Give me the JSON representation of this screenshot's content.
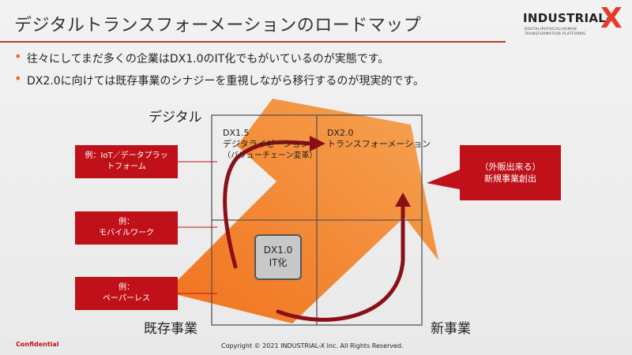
{
  "title": "デジタルトランスフォーメーションのロードマップ",
  "logo": {
    "name": "INDUSTRIAL-",
    "x": "X",
    "line1": "DIGITAL/PHYSICAL/HUMAN",
    "line2": "TRANSFORMATION PLATFORMS"
  },
  "bullets": [
    "往々にしてまだ多くの企業はDX1.0のIT化でもがいているのが実態です。",
    "DX2.0に向けては既存事業のシナジーを重視しながら移行するのが現実的です。"
  ],
  "axes": {
    "top_left": "デジタル",
    "bottom_left": "既存事業",
    "bottom_right": "新事業"
  },
  "quadrants": {
    "dx15_title": "DX1.5",
    "dx15_line1": "デジタライゼーション",
    "dx15_line2": "（バリューチェーン変革）",
    "dx20_title": "DX2.0",
    "dx20_line1": "トランスフォーメーション"
  },
  "dx10": {
    "line1": "DX1.0",
    "line2": "IT化"
  },
  "left_boxes": [
    {
      "line1": "例：IoT／データプラッ",
      "line2": "トフォーム"
    },
    {
      "line1": "例：",
      "line2": "モバイルワーク"
    },
    {
      "line1": "例：",
      "line2": "ペーパーレス"
    }
  ],
  "right_box": {
    "line1": "（外販出来る）",
    "line2": "新規事業創出"
  },
  "footer": {
    "confidential": "Confidential",
    "copyright": "Copyright © 2021 INDUSTRIAL-X Inc. All Rights Reserved."
  },
  "colors": {
    "accent_red": "#c0111a",
    "arrow_orange": "#f0821e",
    "arrow_dark": "#8b0f16",
    "logo_x": "#e53b2c"
  }
}
